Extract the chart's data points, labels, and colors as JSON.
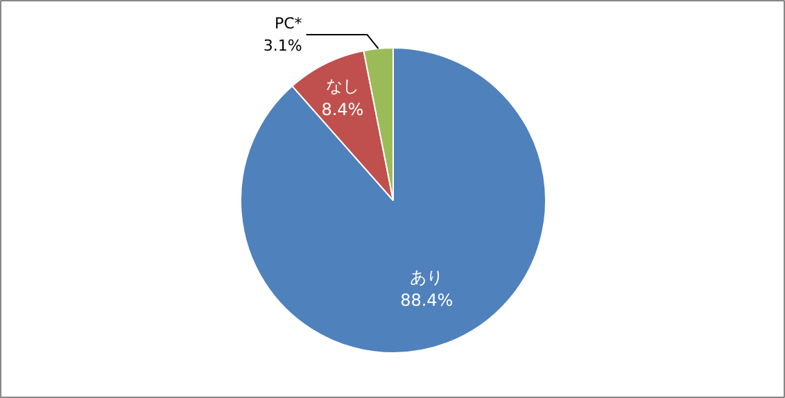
{
  "chart_data": {
    "type": "pie",
    "categories": [
      "あり",
      "なし",
      "PC*"
    ],
    "values": [
      88.4,
      8.4,
      3.1
    ],
    "value_labels": [
      "88.4%",
      "8.4%",
      "3.1%"
    ],
    "colors": [
      "#4f81bd",
      "#c0504d",
      "#9bbb59"
    ],
    "legend": false
  }
}
